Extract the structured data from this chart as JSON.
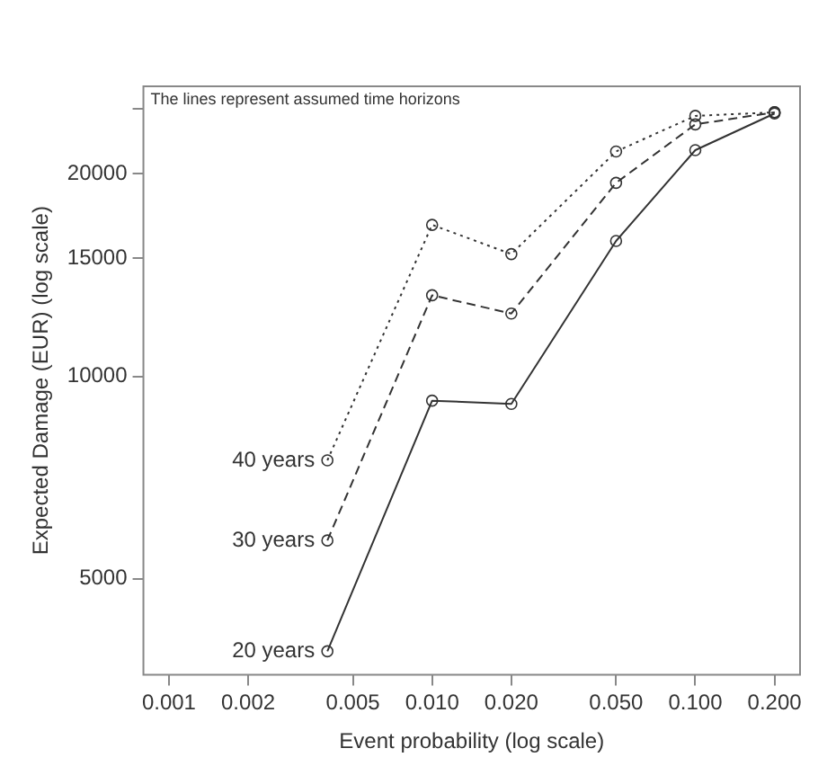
{
  "chart_data": {
    "type": "line",
    "xlabel": "Event probability (log scale)",
    "ylabel": "Expected Damage (EUR) (log scale)",
    "annotations": [
      "The lines represent assumed time horizons"
    ],
    "log": "xy",
    "grid": false,
    "legend": false,
    "marker": "circle",
    "x": [
      0.004,
      0.01,
      0.02,
      0.05,
      0.1,
      0.2
    ],
    "xlim": [
      0.0008,
      0.25
    ],
    "xticks": [
      0.001,
      0.002,
      0.005,
      {
        "value": 0.01,
        "label": "0.010"
      },
      {
        "value": 0.02,
        "label": "0.020"
      },
      {
        "value": 0.05,
        "label": "0.050"
      },
      {
        "value": 0.1,
        "label": "0.100"
      },
      {
        "value": 0.2,
        "label": "0.200"
      }
    ],
    "ylim": [
      3600,
      27000
    ],
    "yticks": [
      5000,
      10000,
      15000,
      20000,
      {
        "value": 25000,
        "label": null
      }
    ],
    "series": [
      {
        "name": "20 years",
        "color": "#333333",
        "line_style": "solid",
        "values": [
          3900,
          9200,
          9100,
          15900,
          21700,
          24600
        ]
      },
      {
        "name": "30 years",
        "color": "#333333",
        "line_style": "dashed",
        "values": [
          5700,
          13200,
          12400,
          19400,
          23700,
          24700
        ]
      },
      {
        "name": "40 years",
        "color": "#333333",
        "line_style": "dotted",
        "values": [
          7500,
          16800,
          15200,
          21600,
          24400,
          24700
        ]
      }
    ]
  }
}
